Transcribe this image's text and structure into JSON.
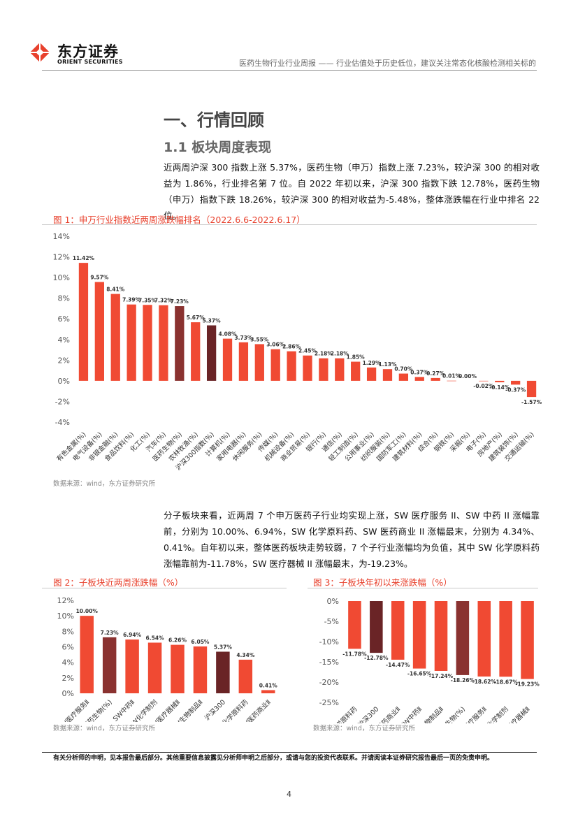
{
  "header": {
    "brand_cn": "东方证券",
    "brand_en": "ORIENT SECURITIES",
    "report_title": "医药生物行业行业周报 —— 行业估值处于历史低位，建议关注常态化核酸检测相关标的"
  },
  "section": {
    "title": "一、行情回顾",
    "subtitle": "1.1 板块周度表现",
    "para1": "近两周沪深 300 指数上涨 5.37%，医药生物（申万）指数上涨 7.23%，较沪深 300 的相对收益为 1.86%，行业排名第 7 位。自 2022 年初以来，沪深 300 指数下跌 12.78%，医药生物（申万）指数下跌 18.26%，较沪深 300 的相对收益为-5.48%，整体涨跌幅在行业中排名 22 位。",
    "para2": "分子板块来看，近两周 7 个申万医药子行业均实现上涨，SW 医疗服务 II、SW 中药 II 涨幅靠前，分别为 10.00%、6.94%，SW 化学原料药、SW 医药商业 II 涨幅最末，分别为 4.34%、0.41%。自年初以来，整体医药板块走势较弱，7 个子行业涨幅均为负值，其中 SW 化学原料药涨幅靠前为-11.78%，SW 医疗器械 II 涨幅最末，为-19.23%。"
  },
  "figures": {
    "fig1_title": "图 1：申万行业指数近两周涨跌幅排名（2022.6.6-2022.6.17）",
    "fig2_title": "图 2：子板块近两周涨跌幅（%）",
    "fig3_title": "图 3：子板块年初以来涨跌幅（%）",
    "source": "数据来源：wind，东方证券研究所"
  },
  "footer": {
    "disclaimer": "有关分析师的申明，见本报告最后部分。其他重要信息披露见分析师申明之后部分，或请与您的投资代表联系。并请阅读本证券研究报告最后一页的免责申明。",
    "page": "4"
  },
  "colors": {
    "red": "#f04a33",
    "dark_red": "#8a3230",
    "darkest_red": "#6a2426",
    "accent": "#e8412d"
  },
  "chart_data": [
    {
      "type": "bar",
      "categories": [
        "有色金属(%)",
        "电气设备(%)",
        "非银金融(%)",
        "食品饮料(%)",
        "化工(%)",
        "汽车(%)",
        "医药生物(%)",
        "农林牧渔(%)",
        "沪深300指数(%)",
        "计算机(%)",
        "家用电器(%)",
        "休闲服务(%)",
        "传媒(%)",
        "机械设备(%)",
        "商业贸易(%)",
        "银行(%)",
        "通信(%)",
        "轻工制造(%)",
        "公用事业(%)",
        "纺织服装(%)",
        "国防军工(%)",
        "建筑材料(%)",
        "综合(%)",
        "钢铁(%)",
        "采掘(%)",
        "电子(%)",
        "房地产(%)",
        "建筑装饰(%)",
        "交通运输(%)"
      ],
      "values": [
        11.42,
        9.57,
        8.41,
        7.39,
        7.35,
        7.32,
        7.23,
        5.67,
        5.37,
        4.08,
        3.73,
        3.55,
        3.06,
        2.86,
        2.45,
        2.18,
        2.18,
        1.85,
        1.29,
        1.13,
        0.7,
        0.37,
        0.27,
        0.01,
        0.0,
        -0.02,
        -0.14,
        -0.37,
        -1.57
      ],
      "labels": [
        "11.42%",
        "9.57%",
        "8.41%",
        "7.39%",
        "7.35%",
        "7.32%",
        "7.23%",
        "5.67%",
        "5.37%",
        "4.08%",
        "3.73%",
        "3.55%",
        "3.06%",
        "2.86%",
        "2.45%",
        "2.18%",
        "2.18%",
        "1.85%",
        "1.29%",
        "1.13%",
        "0.70%",
        "0.37%",
        "0.27%",
        "0.01%",
        "0.00%",
        "-0.02%",
        "-0.14%",
        "-0.37%",
        "-1.57%"
      ],
      "highlight": [
        6,
        8
      ],
      "highlight_colors": [
        "#8a3230",
        "#6a2426"
      ],
      "yticks": [
        -4,
        -2,
        0,
        2,
        4,
        6,
        8,
        10,
        12,
        14
      ],
      "ytick_labels": [
        "-4%",
        "-2%",
        "0%",
        "2%",
        "4%",
        "6%",
        "8%",
        "10%",
        "12%",
        "14%"
      ],
      "ylim": [
        -4,
        14
      ]
    },
    {
      "type": "bar",
      "categories": [
        "SW医疗服务Ⅱ",
        "医药生物(%)",
        "SW中药Ⅱ",
        "SW化学制剂",
        "SW医疗器械Ⅱ",
        "SW生物制品Ⅱ",
        "沪深300",
        "SW化学原料药",
        "SW医药商业Ⅱ"
      ],
      "values": [
        10.0,
        7.23,
        6.94,
        6.54,
        6.26,
        6.05,
        5.37,
        4.34,
        0.41
      ],
      "labels": [
        "10.00%",
        "7.23%",
        "6.94%",
        "6.54%",
        "6.26%",
        "6.05%",
        "5.37%",
        "4.34%",
        "0.41%"
      ],
      "highlight": [
        1,
        6
      ],
      "highlight_colors": [
        "#8a3230",
        "#6a2426"
      ],
      "yticks": [
        0,
        2,
        4,
        6,
        8,
        10,
        12
      ],
      "ytick_labels": [
        "0%",
        "2%",
        "4%",
        "6%",
        "8%",
        "10%",
        "12%"
      ],
      "ylim": [
        0,
        12
      ]
    },
    {
      "type": "bar",
      "categories": [
        "SW化学原料药",
        "沪深300",
        "SW医药商业Ⅱ",
        "SW中药Ⅱ",
        "SW生物制品Ⅱ",
        "医药生物(%)",
        "SW医疗服务Ⅱ",
        "SW化学制剂",
        "SW医疗器械Ⅱ"
      ],
      "values": [
        -11.78,
        -12.78,
        -14.47,
        -16.65,
        -17.24,
        -18.26,
        -18.62,
        -18.67,
        -19.23
      ],
      "labels": [
        "-11.78%",
        "-12.78%",
        "-14.47%",
        "-16.65%",
        "-17.24%",
        "-18.26%",
        "-18.62%",
        "-18.67%",
        "-19.23%"
      ],
      "highlight": [
        1,
        5
      ],
      "highlight_colors": [
        "#6a2426",
        "#8a3230"
      ],
      "yticks": [
        -25,
        -20,
        -15,
        -10,
        -5,
        0
      ],
      "ytick_labels": [
        "-25%",
        "-20%",
        "-15%",
        "-10%",
        "-5%",
        "0%"
      ],
      "ylim": [
        -25,
        0
      ]
    }
  ]
}
